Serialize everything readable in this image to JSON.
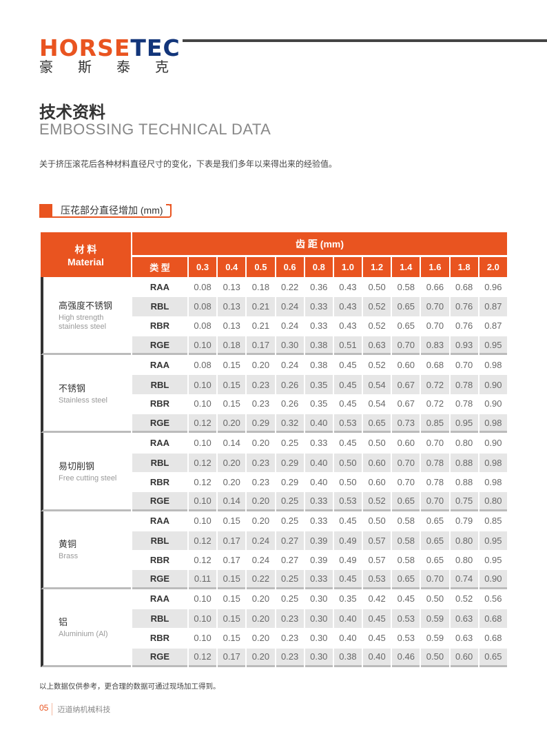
{
  "logo": {
    "word_a": "HORSE",
    "word_b": "TEC",
    "cn": "豪斯泰克",
    "colors": {
      "orange": "#e95420",
      "navy": "#12357a"
    }
  },
  "title_cn": "技术资料",
  "title_en": "EMBOSSING TECHNICAL DATA",
  "intro": "关于挤压滚花后各种材料直径尺寸的变化，下表是我们多年以来得出来的经验值。",
  "section_label": "压花部分直径增加 (mm)",
  "table": {
    "material_header_cn": "材 料",
    "material_header_en": "Material",
    "pitch_header": "齿 距 (mm)",
    "type_header": "类 型",
    "pitches": [
      "0.3",
      "0.4",
      "0.5",
      "0.6",
      "0.8",
      "1.0",
      "1.2",
      "1.4",
      "1.6",
      "1.8",
      "2.0"
    ],
    "groups": [
      {
        "cn": "高强度不锈钢",
        "en": "High strength stainless steel",
        "rows": [
          {
            "type": "RAA",
            "values": [
              "0.08",
              "0.13",
              "0.18",
              "0.22",
              "0.36",
              "0.43",
              "0.50",
              "0.58",
              "0.66",
              "0.68",
              "0.96"
            ]
          },
          {
            "type": "RBL",
            "values": [
              "0.08",
              "0.13",
              "0.21",
              "0.24",
              "0.33",
              "0.43",
              "0.52",
              "0.65",
              "0.70",
              "0.76",
              "0.87"
            ]
          },
          {
            "type": "RBR",
            "values": [
              "0.08",
              "0.13",
              "0.21",
              "0.24",
              "0.33",
              "0.43",
              "0.52",
              "0.65",
              "0.70",
              "0.76",
              "0.87"
            ]
          },
          {
            "type": "RGE",
            "values": [
              "0.10",
              "0.18",
              "0.17",
              "0.30",
              "0.38",
              "0.51",
              "0.63",
              "0.70",
              "0.83",
              "0.93",
              "0.95"
            ]
          }
        ]
      },
      {
        "cn": "不锈钢",
        "en": "Stainless steel",
        "rows": [
          {
            "type": "RAA",
            "values": [
              "0.08",
              "0.15",
              "0.20",
              "0.24",
              "0.38",
              "0.45",
              "0.52",
              "0.60",
              "0.68",
              "0.70",
              "0.98"
            ]
          },
          {
            "type": "RBL",
            "values": [
              "0.10",
              "0.15",
              "0.23",
              "0.26",
              "0.35",
              "0.45",
              "0.54",
              "0.67",
              "0.72",
              "0.78",
              "0.90"
            ]
          },
          {
            "type": "RBR",
            "values": [
              "0.10",
              "0.15",
              "0.23",
              "0.26",
              "0.35",
              "0.45",
              "0.54",
              "0.67",
              "0.72",
              "0.78",
              "0.90"
            ]
          },
          {
            "type": "RGE",
            "values": [
              "0.12",
              "0.20",
              "0.29",
              "0.32",
              "0.40",
              "0.53",
              "0.65",
              "0.73",
              "0.85",
              "0.95",
              "0.98"
            ]
          }
        ]
      },
      {
        "cn": "易切削钢",
        "en": "Free cutting steel",
        "rows": [
          {
            "type": "RAA",
            "values": [
              "0.10",
              "0.14",
              "0.20",
              "0.25",
              "0.33",
              "0.45",
              "0.50",
              "0.60",
              "0.70",
              "0.80",
              "0.90"
            ]
          },
          {
            "type": "RBL",
            "values": [
              "0.12",
              "0.20",
              "0.23",
              "0.29",
              "0.40",
              "0.50",
              "0.60",
              "0.70",
              "0.78",
              "0.88",
              "0.98"
            ]
          },
          {
            "type": "RBR",
            "values": [
              "0.12",
              "0.20",
              "0.23",
              "0.29",
              "0.40",
              "0.50",
              "0.60",
              "0.70",
              "0.78",
              "0.88",
              "0.98"
            ]
          },
          {
            "type": "RGE",
            "values": [
              "0.10",
              "0.14",
              "0.20",
              "0.25",
              "0.33",
              "0.53",
              "0.52",
              "0.65",
              "0.70",
              "0.75",
              "0.80"
            ]
          }
        ]
      },
      {
        "cn": "黄铜",
        "en": "Brass",
        "rows": [
          {
            "type": "RAA",
            "values": [
              "0.10",
              "0.15",
              "0.20",
              "0.25",
              "0.33",
              "0.45",
              "0.50",
              "0.58",
              "0.65",
              "0.79",
              "0.85"
            ]
          },
          {
            "type": "RBL",
            "values": [
              "0.12",
              "0.17",
              "0.24",
              "0.27",
              "0.39",
              "0.49",
              "0.57",
              "0.58",
              "0.65",
              "0.80",
              "0.95"
            ]
          },
          {
            "type": "RBR",
            "values": [
              "0.12",
              "0.17",
              "0.24",
              "0.27",
              "0.39",
              "0.49",
              "0.57",
              "0.58",
              "0.65",
              "0.80",
              "0.95"
            ]
          },
          {
            "type": "RGE",
            "values": [
              "0.11",
              "0.15",
              "0.22",
              "0.25",
              "0.33",
              "0.45",
              "0.53",
              "0.65",
              "0.70",
              "0.74",
              "0.90"
            ]
          }
        ]
      },
      {
        "cn": "铝",
        "en": "Aluminium (Al)",
        "rows": [
          {
            "type": "RAA",
            "values": [
              "0.10",
              "0.15",
              "0.20",
              "0.25",
              "0.30",
              "0.35",
              "0.42",
              "0.45",
              "0.50",
              "0.52",
              "0.56"
            ]
          },
          {
            "type": "RBL",
            "values": [
              "0.10",
              "0.15",
              "0.20",
              "0.23",
              "0.30",
              "0.40",
              "0.45",
              "0.53",
              "0.59",
              "0.63",
              "0.68"
            ]
          },
          {
            "type": "RBR",
            "values": [
              "0.10",
              "0.15",
              "0.20",
              "0.23",
              "0.30",
              "0.40",
              "0.45",
              "0.53",
              "0.59",
              "0.63",
              "0.68"
            ]
          },
          {
            "type": "RGE",
            "values": [
              "0.12",
              "0.17",
              "0.20",
              "0.23",
              "0.30",
              "0.38",
              "0.40",
              "0.46",
              "0.50",
              "0.60",
              "0.65"
            ]
          }
        ]
      }
    ]
  },
  "note": "以上数据仅供参考，更合理的数据可通过现场加工得到。",
  "footer": {
    "page": "05",
    "company": "迈道纳机械科技"
  }
}
